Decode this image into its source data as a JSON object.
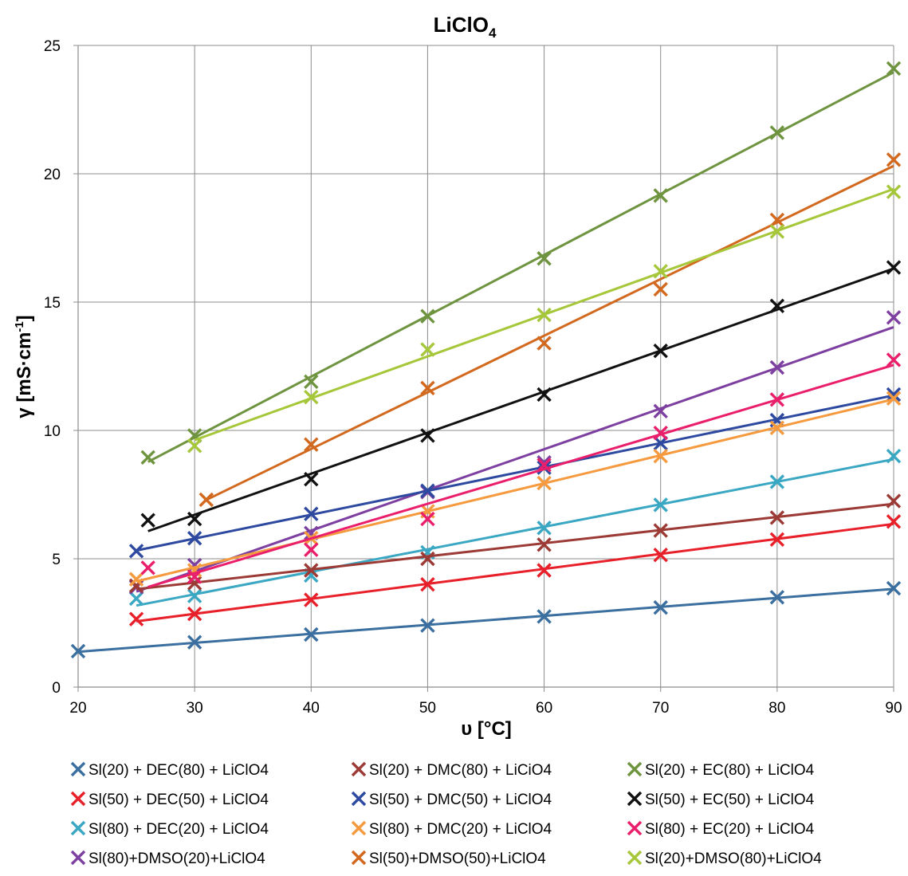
{
  "chart_data": {
    "type": "scatter",
    "title": "LiClO",
    "title_subscript": "4",
    "xlabel": "υ [°C]",
    "ylabel": "γ [mS·cm",
    "ylabel_superscript": "-1",
    "ylabel_suffix": "]",
    "xlim": [
      20,
      90
    ],
    "ylim": [
      0,
      25
    ],
    "x_ticks": [
      "20",
      "30",
      "40",
      "50",
      "60",
      "70",
      "80",
      "90"
    ],
    "y_ticks": [
      "0",
      "5",
      "10",
      "15",
      "20",
      "25"
    ],
    "grid": true,
    "legend_position": "bottom",
    "marker": "x",
    "trendline": "linear",
    "series": [
      {
        "name": "Sl(20) + DEC(80) + LiClO4",
        "color": "#3b6fa0",
        "x": [
          20,
          30,
          40,
          50,
          60,
          70,
          80,
          90
        ],
        "y": [
          1.4,
          1.75,
          2.05,
          2.4,
          2.75,
          3.1,
          3.5,
          3.85
        ]
      },
      {
        "name": "Sl(50) + DEC(50) + LiClO4",
        "color": "#e8202a",
        "x": [
          25,
          30,
          40,
          50,
          60,
          70,
          80,
          90
        ],
        "y": [
          2.65,
          2.85,
          3.4,
          4.0,
          4.55,
          5.15,
          5.75,
          6.45
        ]
      },
      {
        "name": "Sl(80) + DEC(20) + LiClO4",
        "color": "#3aa7c3",
        "x": [
          25,
          30,
          40,
          50,
          60,
          70,
          80,
          90
        ],
        "y": [
          3.45,
          3.55,
          4.35,
          5.25,
          6.2,
          7.1,
          8.0,
          9.0
        ]
      },
      {
        "name": "Sl(80)+DMSO(20)+LiClO4",
        "color": "#7d3fa0",
        "x": [
          25,
          30,
          40,
          50,
          60,
          70,
          80,
          90
        ],
        "y": [
          3.9,
          4.75,
          6.0,
          7.6,
          8.75,
          10.75,
          12.45,
          14.4
        ]
      },
      {
        "name": "Sl(20) + DMC(80) + LiCiO4",
        "color": "#9c3a36",
        "x": [
          25,
          30,
          40,
          50,
          60,
          70,
          80,
          90
        ],
        "y": [
          3.95,
          4.05,
          4.55,
          5.0,
          5.55,
          6.1,
          6.6,
          7.25
        ]
      },
      {
        "name": "Sl(50) + DMC(50) + LiClO4",
        "color": "#2e4aa0",
        "x": [
          25,
          30,
          40,
          50,
          60,
          70,
          80,
          90
        ],
        "y": [
          5.3,
          5.8,
          6.75,
          7.65,
          8.55,
          9.5,
          10.4,
          11.4
        ]
      },
      {
        "name": "Sl(80) + DMC(20) + LiClO4",
        "color": "#f59a3e",
        "x": [
          25,
          30,
          40,
          50,
          60,
          70,
          80,
          90
        ],
        "y": [
          4.2,
          4.55,
          5.8,
          6.85,
          7.95,
          9.0,
          10.1,
          11.25
        ]
      },
      {
        "name": "Sl(50)+DMSO(50)+LiClO4",
        "color": "#d2691e",
        "x": [
          31,
          40,
          50,
          60,
          70,
          80,
          90
        ],
        "y": [
          7.3,
          9.45,
          11.65,
          13.4,
          15.5,
          18.2,
          20.55
        ]
      },
      {
        "name": "Sl(20) + EC(80) + LiClO4",
        "color": "#6f9440",
        "x": [
          26,
          30,
          40,
          50,
          60,
          70,
          80,
          90
        ],
        "y": [
          8.95,
          9.8,
          11.9,
          14.45,
          16.7,
          19.15,
          21.6,
          24.1
        ]
      },
      {
        "name": "Sl(50) + EC(50) + LiClO4",
        "color": "#111111",
        "x": [
          26,
          30,
          40,
          50,
          60,
          70,
          80,
          90
        ],
        "y": [
          6.5,
          6.55,
          8.1,
          9.8,
          11.4,
          13.1,
          14.85,
          16.35
        ]
      },
      {
        "name": "Sl(80) + EC(20) + LiClO4",
        "color": "#ea1f6c",
        "x": [
          26,
          30,
          40,
          50,
          60,
          70,
          80,
          90
        ],
        "y": [
          4.65,
          4.3,
          5.35,
          6.55,
          8.65,
          9.9,
          11.2,
          12.75
        ]
      },
      {
        "name": "Sl(20)+DMSO(80)+LiClO4",
        "color": "#a6c73a",
        "x": [
          30,
          40,
          50,
          60,
          70,
          80,
          90
        ],
        "y": [
          9.4,
          11.3,
          13.15,
          14.5,
          16.2,
          17.75,
          19.3
        ]
      }
    ]
  }
}
